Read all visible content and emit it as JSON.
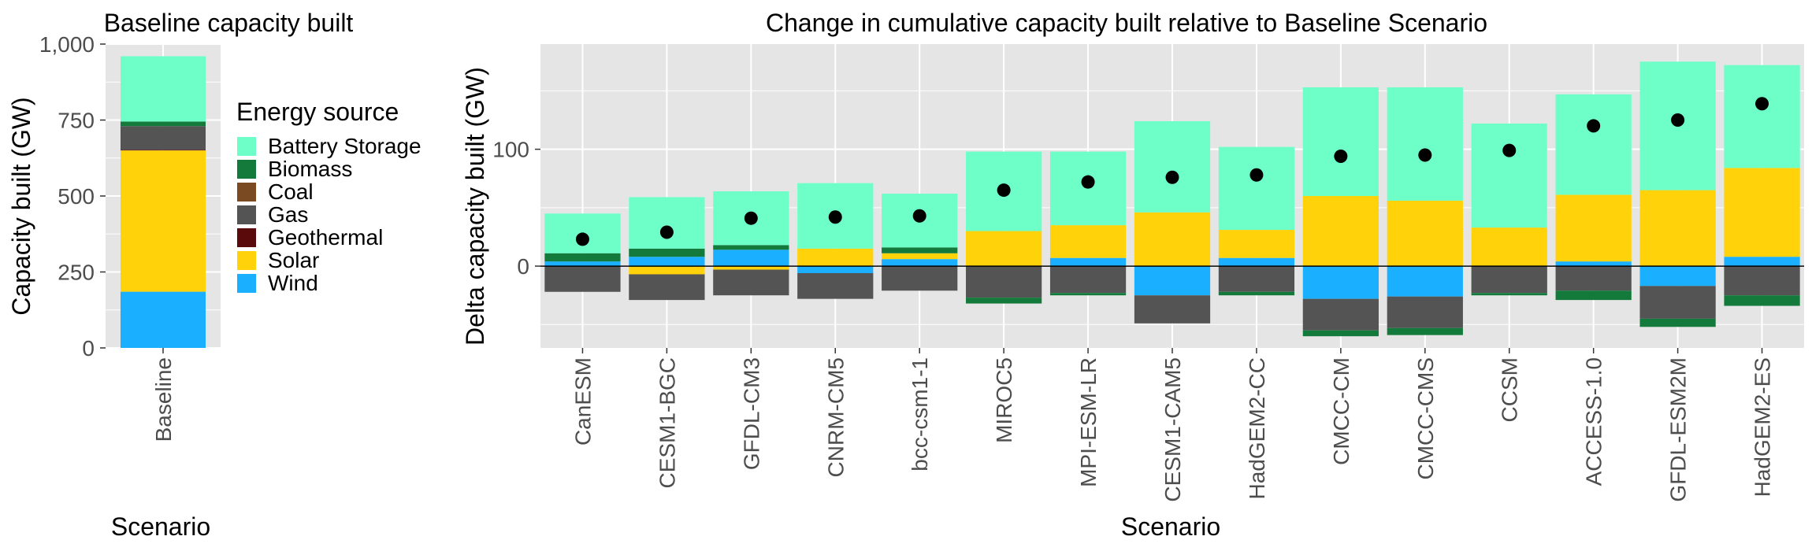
{
  "chart_data": [
    {
      "type": "bar",
      "stacked": true,
      "title": "Baseline capacity built",
      "xlabel": "Scenario",
      "ylabel": "Capacity built (GW)",
      "ylim": [
        0,
        1000
      ],
      "yticks": [
        0,
        250,
        500,
        750,
        1000
      ],
      "ytick_labels": [
        "0",
        "250",
        "500",
        "750",
        "1,000"
      ],
      "grid": true,
      "categories": [
        "Baseline"
      ],
      "series": [
        {
          "name": "Wind",
          "values": [
            185
          ]
        },
        {
          "name": "Solar",
          "values": [
            465
          ]
        },
        {
          "name": "Geothermal",
          "values": [
            2
          ]
        },
        {
          "name": "Gas",
          "values": [
            78
          ]
        },
        {
          "name": "Coal",
          "values": [
            0
          ]
        },
        {
          "name": "Biomass",
          "values": [
            15
          ]
        },
        {
          "name": "Battery Storage",
          "values": [
            215
          ]
        }
      ]
    },
    {
      "type": "bar",
      "stacked": true,
      "title": "Change in cumulative capacity built relative to Baseline Scenario",
      "xlabel": "Scenario",
      "ylabel": "Delta capacity built (GW)",
      "ylim": [
        -70,
        190
      ],
      "yticks": [
        0,
        100
      ],
      "ytick_labels": [
        "0",
        "100"
      ],
      "grid": true,
      "hline_at": 0,
      "point_series": "Net change (dots)",
      "categories": [
        "CanESM",
        "CESM1-BGC",
        "GFDL-CM3",
        "CNRM-CM5",
        "bcc-csm1-1",
        "MIROC5",
        "MPI-ESM-LR",
        "CESM1-CAM5",
        "HadGEM2-CC",
        "CMCC-CM",
        "CMCC-CMS",
        "CCSM",
        "ACCESS-1.0",
        "GFDL-ESM2M",
        "HadGEM2-ES"
      ],
      "series": [
        {
          "name": "Wind",
          "values": [
            4,
            8,
            14,
            -6,
            6,
            0,
            7,
            -25,
            7,
            -28,
            -26,
            0,
            4,
            -17,
            8
          ]
        },
        {
          "name": "Solar",
          "values": [
            0,
            -7,
            -3,
            15,
            5,
            30,
            28,
            46,
            24,
            60,
            56,
            33,
            57,
            65,
            76
          ]
        },
        {
          "name": "Gas",
          "values": [
            -22,
            -22,
            -22,
            -22,
            -21,
            -27,
            -23,
            -24,
            -22,
            -27,
            -27,
            -23,
            -21,
            -28,
            -25
          ]
        },
        {
          "name": "Biomass",
          "values": [
            7,
            7,
            4,
            0,
            5,
            -5,
            -2,
            0,
            -3,
            -5,
            -6,
            -2,
            -8,
            -7,
            -9
          ]
        },
        {
          "name": "Coal",
          "values": [
            0,
            0,
            0,
            0,
            0,
            0,
            0,
            0,
            0,
            0,
            0,
            0,
            0,
            0,
            0
          ]
        },
        {
          "name": "Geothermal",
          "values": [
            0,
            0,
            0,
            0,
            0,
            0,
            0,
            0,
            0,
            0,
            0,
            0,
            0,
            0,
            0
          ]
        },
        {
          "name": "Battery Storage",
          "values": [
            34,
            44,
            46,
            56,
            46,
            68,
            63,
            78,
            71,
            93,
            97,
            89,
            86,
            110,
            88
          ]
        }
      ],
      "points": [
        23,
        29,
        41,
        42,
        43,
        65,
        72,
        76,
        78,
        94,
        95,
        99,
        120,
        125,
        139
      ]
    }
  ],
  "legend": {
    "title": "Energy source",
    "placement": "right of left panel",
    "items": [
      {
        "label": "Battery Storage",
        "color": "#6effc9"
      },
      {
        "label": "Biomass",
        "color": "#137a3c"
      },
      {
        "label": "Coal",
        "color": "#7a4a22"
      },
      {
        "label": "Gas",
        "color": "#545454"
      },
      {
        "label": "Geothermal",
        "color": "#5a0a0a"
      },
      {
        "label": "Solar",
        "color": "#ffd20a"
      },
      {
        "label": "Wind",
        "color": "#1ab0ff"
      }
    ]
  },
  "colors": {
    "panel_background": "#e5e5e5",
    "grid_line": "#ffffff",
    "point": "#000000"
  }
}
